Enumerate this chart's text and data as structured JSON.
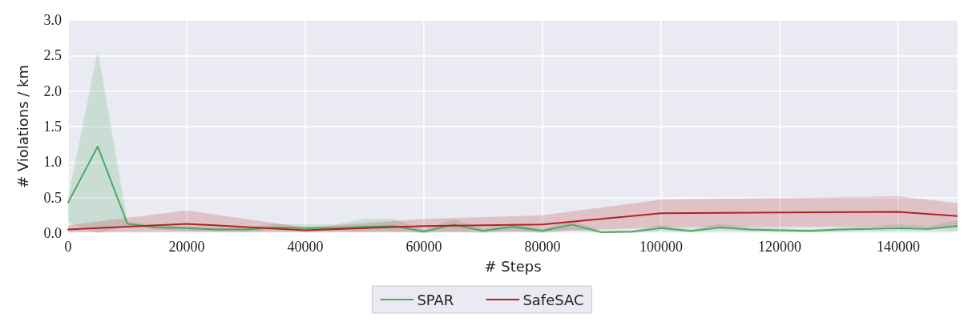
{
  "chart_data": {
    "type": "line",
    "xlabel": "# Steps",
    "ylabel": "# Violations / km",
    "xlim": [
      0,
      150000
    ],
    "xticks": [
      0,
      20000,
      40000,
      60000,
      80000,
      100000,
      120000,
      140000
    ],
    "ylim": [
      0,
      3.0
    ],
    "yticks": [
      {
        "value": 0,
        "label": "0.0"
      },
      {
        "value": 0.5,
        "label": "0.5"
      },
      {
        "value": 1,
        "label": "1.0"
      },
      {
        "value": 1.5,
        "label": "1.5"
      },
      {
        "value": 2,
        "label": "2.0"
      },
      {
        "value": 2.5,
        "label": "2.5"
      },
      {
        "value": 3,
        "label": "3.0"
      }
    ],
    "grid": true,
    "legend": "bottom",
    "line_style": "solid",
    "marker": "none",
    "series": [
      {
        "name": "SPAR",
        "color": "#4ca863",
        "x": [
          0,
          5000,
          10000,
          15000,
          20000,
          25000,
          30000,
          35000,
          40000,
          45000,
          50000,
          55000,
          60000,
          65000,
          70000,
          75000,
          80000,
          85000,
          90000,
          95000,
          100000,
          105000,
          110000,
          115000,
          120000,
          125000,
          130000,
          135000,
          140000,
          145000,
          150000
        ],
        "values": [
          0.43,
          1.22,
          0.13,
          0.08,
          0.07,
          0.05,
          0.05,
          0.08,
          0.07,
          0.07,
          0.09,
          0.1,
          0.02,
          0.12,
          0.03,
          0.09,
          0.03,
          0.12,
          0.01,
          0.02,
          0.07,
          0.03,
          0.08,
          0.05,
          0.04,
          0.03,
          0.05,
          0.06,
          0.07,
          0.06,
          0.1
        ],
        "lower": [
          0.15,
          0,
          0.1,
          0.05,
          0.03,
          0.02,
          0.02,
          0.04,
          0.03,
          0.03,
          0.02,
          0.02,
          0.0,
          0.02,
          0.0,
          0.03,
          0.0,
          0.04,
          0.0,
          0.0,
          0.03,
          0.01,
          0.04,
          0.02,
          0.02,
          0.01,
          0.02,
          0.03,
          0.03,
          0.03,
          0.03
        ],
        "upper": [
          0.5,
          2.57,
          0.16,
          0.12,
          0.1,
          0.08,
          0.08,
          0.13,
          0.12,
          0.12,
          0.2,
          0.2,
          0.05,
          0.2,
          0.06,
          0.14,
          0.06,
          0.17,
          0.03,
          0.04,
          0.11,
          0.06,
          0.13,
          0.08,
          0.07,
          0.05,
          0.08,
          0.1,
          0.12,
          0.1,
          0.18
        ]
      },
      {
        "name": "SafeSAC",
        "color": "#b22222",
        "x": [
          0,
          20000,
          40000,
          60000,
          80000,
          100000,
          140000,
          150000
        ],
        "values": [
          0.05,
          0.13,
          0.04,
          0.1,
          0.12,
          0.28,
          0.3,
          0.24
        ],
        "lower": [
          0.01,
          0.02,
          0.01,
          0.02,
          0.02,
          0.08,
          0.09,
          0.08
        ],
        "upper": [
          0.11,
          0.32,
          0.08,
          0.2,
          0.25,
          0.47,
          0.52,
          0.42
        ]
      }
    ]
  }
}
